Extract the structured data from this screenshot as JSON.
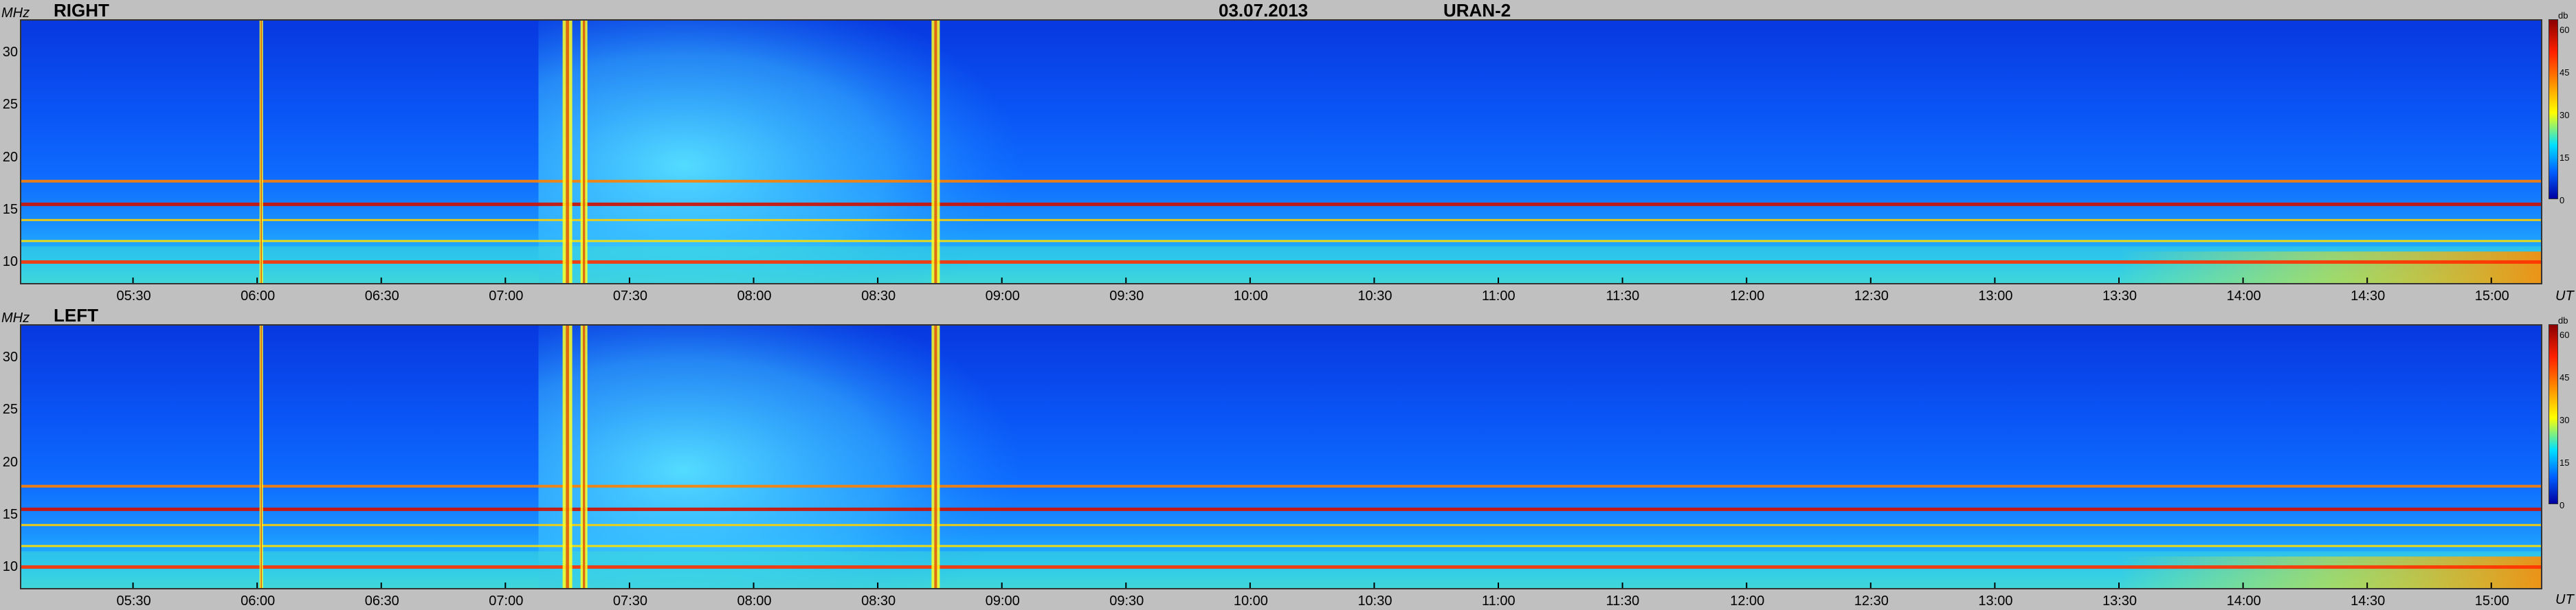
{
  "header": {
    "date": "03.07.2013",
    "instrument": "URAN-2"
  },
  "chart_data": [
    {
      "type": "heatmap",
      "title": "RIGHT",
      "ylabel": "MHz",
      "xlabel": "UT",
      "colorbar_label": "db",
      "colorbar_ticks": [
        "60",
        "45",
        "30",
        "15",
        "0"
      ],
      "y_ticks": [
        "30",
        "25",
        "20",
        "15",
        "10"
      ],
      "x_ticks": [
        "05:30",
        "06:00",
        "06:30",
        "07:00",
        "07:30",
        "08:00",
        "08:30",
        "09:00",
        "09:30",
        "10:00",
        "10:30",
        "11:00",
        "11:30",
        "12:00",
        "12:30",
        "13:00",
        "13:30",
        "14:00",
        "14:30",
        "15:00"
      ],
      "ylim": [
        8,
        33
      ],
      "xlim": [
        "05:03",
        "15:12"
      ],
      "zlim": [
        0,
        60
      ],
      "colormap": [
        "#00008b",
        "#0050ff",
        "#00c8ff",
        "#ffff00",
        "#ff6000",
        "#8b0000"
      ],
      "features": {
        "broadband_bursts_UT": [
          "06:01",
          "07:15",
          "07:19",
          "08:44"
        ],
        "interference_bands_MHz": [
          10,
          12,
          14,
          15.5,
          17.7
        ]
      }
    },
    {
      "type": "heatmap",
      "title": "LEFT",
      "ylabel": "MHz",
      "xlabel": "UT",
      "colorbar_label": "db",
      "colorbar_ticks": [
        "60",
        "45",
        "30",
        "15",
        "0"
      ],
      "y_ticks": [
        "30",
        "25",
        "20",
        "15",
        "10"
      ],
      "x_ticks": [
        "05:30",
        "06:00",
        "06:30",
        "07:00",
        "07:30",
        "08:00",
        "08:30",
        "09:00",
        "09:30",
        "10:00",
        "10:30",
        "11:00",
        "11:30",
        "12:00",
        "12:30",
        "13:00",
        "13:30",
        "14:00",
        "14:30",
        "15:00"
      ],
      "ylim": [
        8,
        33
      ],
      "xlim": [
        "05:03",
        "15:12"
      ],
      "zlim": [
        0,
        60
      ],
      "colormap": [
        "#00008b",
        "#0050ff",
        "#00c8ff",
        "#ffff00",
        "#ff6000",
        "#8b0000"
      ],
      "features": {
        "broadband_bursts_UT": [
          "06:01",
          "07:15",
          "07:19",
          "08:44"
        ],
        "interference_bands_MHz": [
          10,
          12,
          14,
          15.5,
          17.7
        ]
      }
    }
  ]
}
